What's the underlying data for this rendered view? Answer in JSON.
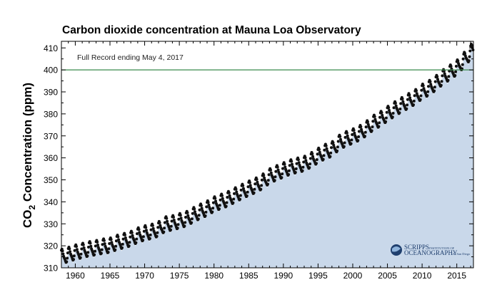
{
  "chart_data": {
    "type": "scatter",
    "title": "Carbon dioxide concentration at Mauna Loa Observatory",
    "ylabel_main": "CO",
    "ylabel_sub": "2",
    "ylabel_rest": " Concentration (ppm)",
    "annotation": "Full Record ending May 4, 2017",
    "xlim": [
      1958,
      2017.4
    ],
    "ylim": [
      310,
      413
    ],
    "xticks": [
      1960,
      1965,
      1970,
      1975,
      1980,
      1985,
      1990,
      1995,
      2000,
      2005,
      2010,
      2015
    ],
    "yticks": [
      310,
      320,
      330,
      340,
      350,
      360,
      370,
      380,
      390,
      400,
      410
    ],
    "reference_line": 400,
    "colors": {
      "fill": "#c9d8ea",
      "points": "#111111",
      "reference": "#3a8a4c",
      "axis": "#000000"
    },
    "series": [
      {
        "x": [
          1958.2,
          1959.0,
          1960.0,
          1961.0,
          1962.0,
          1963.0,
          1964.0,
          1965.0,
          1966.0,
          1967.0,
          1968.0,
          1969.0,
          1970.0,
          1971.0,
          1972.0,
          1973.0,
          1974.0,
          1975.0,
          1976.0,
          1977.0,
          1978.0,
          1979.0,
          1980.0,
          1981.0,
          1982.0,
          1983.0,
          1984.0,
          1985.0,
          1986.0,
          1987.0,
          1988.0,
          1989.0,
          1990.0,
          1991.0,
          1992.0,
          1993.0,
          1994.0,
          1995.0,
          1996.0,
          1997.0,
          1998.0,
          1999.0,
          2000.0,
          2001.0,
          2002.0,
          2003.0,
          2004.0,
          2005.0,
          2006.0,
          2007.0,
          2008.0,
          2009.0,
          2010.0,
          2011.0,
          2012.0,
          2013.0,
          2014.0,
          2015.0,
          2016.0,
          2017.3
        ],
        "y": [
          315.0,
          315.8,
          316.9,
          317.6,
          318.4,
          318.9,
          319.6,
          320.0,
          321.3,
          322.1,
          323.0,
          324.6,
          325.6,
          326.3,
          327.4,
          329.7,
          330.2,
          331.1,
          332.0,
          333.8,
          335.4,
          336.8,
          338.7,
          339.9,
          341.1,
          342.8,
          344.4,
          345.9,
          347.2,
          349.0,
          351.5,
          352.9,
          354.2,
          355.6,
          356.4,
          357.1,
          358.8,
          360.8,
          362.6,
          363.7,
          366.7,
          368.4,
          369.6,
          371.1,
          373.2,
          375.8,
          377.5,
          379.8,
          381.9,
          383.8,
          385.6,
          387.4,
          389.9,
          391.6,
          393.8,
          396.5,
          398.6,
          400.8,
          404.2,
          409.0
        ]
      }
    ]
  },
  "logo": {
    "name": "scripps-logo",
    "line1": "SCRIPPS",
    "line1_suffix": "INSTITUTION OF",
    "line2": "OCEANOGRAPHY",
    "line2_suffix": "UC San Diego"
  }
}
